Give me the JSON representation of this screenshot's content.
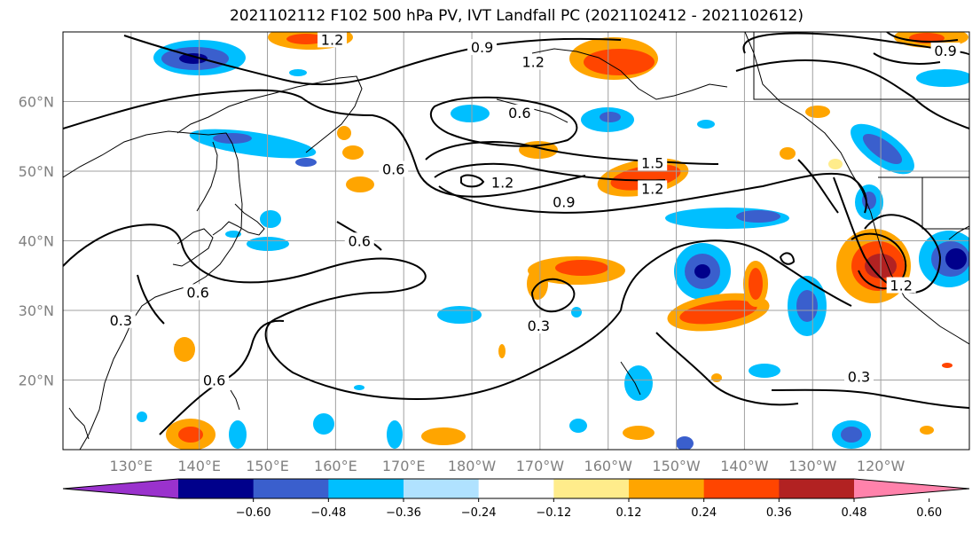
{
  "title": "2021102112 F102 500 hPa PV, IVT Landfall PC (2021102412 - 2021102612)",
  "map": {
    "lon_range": [
      120,
      253
    ],
    "lat_range": [
      10,
      70
    ],
    "lat_ticks": [
      {
        "lat": 20,
        "label": "20°N"
      },
      {
        "lat": 30,
        "label": "30°N"
      },
      {
        "lat": 40,
        "label": "40°N"
      },
      {
        "lat": 50,
        "label": "50°N"
      },
      {
        "lat": 60,
        "label": "60°N"
      }
    ],
    "lon_ticks": [
      {
        "lon": 130,
        "label": "130°E"
      },
      {
        "lon": 140,
        "label": "140°E"
      },
      {
        "lon": 150,
        "label": "150°E"
      },
      {
        "lon": 160,
        "label": "160°E"
      },
      {
        "lon": 170,
        "label": "170°E"
      },
      {
        "lon": 180,
        "label": "180°W"
      },
      {
        "lon": 190,
        "label": "170°W"
      },
      {
        "lon": 200,
        "label": "160°W"
      },
      {
        "lon": 210,
        "label": "150°W"
      },
      {
        "lon": 220,
        "label": "140°W"
      },
      {
        "lon": 230,
        "label": "130°W"
      },
      {
        "lon": 240,
        "label": "120°W"
      }
    ],
    "gridlines": true,
    "contour_labels": [
      {
        "lon": 159.5,
        "lat": 68.8,
        "text": "1.2"
      },
      {
        "lon": 181.5,
        "lat": 67.7,
        "text": "0.9"
      },
      {
        "lon": 189,
        "lat": 65.6,
        "text": "1.2"
      },
      {
        "lon": 187,
        "lat": 58.3,
        "text": "0.6"
      },
      {
        "lon": 168.5,
        "lat": 50.2,
        "text": "0.6"
      },
      {
        "lon": 184.5,
        "lat": 48.3,
        "text": "1.2"
      },
      {
        "lon": 206.5,
        "lat": 51.1,
        "text": "1.5"
      },
      {
        "lon": 206.5,
        "lat": 47.4,
        "text": "1.2"
      },
      {
        "lon": 193.5,
        "lat": 45.5,
        "text": "0.9"
      },
      {
        "lon": 163.5,
        "lat": 39.9,
        "text": "0.6"
      },
      {
        "lon": 139.8,
        "lat": 32.5,
        "text": "0.6"
      },
      {
        "lon": 128.5,
        "lat": 28.5,
        "text": "0.3"
      },
      {
        "lon": 189.8,
        "lat": 27.7,
        "text": "0.3"
      },
      {
        "lon": 142.2,
        "lat": 19.9,
        "text": "0.6"
      },
      {
        "lon": 236.8,
        "lat": 20.4,
        "text": "0.3"
      },
      {
        "lon": 249.5,
        "lat": 67.2,
        "text": "0.9"
      },
      {
        "lon": 243,
        "lat": 33.5,
        "text": "1.2"
      }
    ]
  },
  "colorbar": {
    "boundaries": [
      -0.72,
      -0.6,
      -0.48,
      -0.36,
      -0.24,
      -0.12,
      0.12,
      0.24,
      0.36,
      0.48,
      0.6,
      0.72
    ],
    "colors": [
      "#9a32cd",
      "#00008b",
      "#3a5fcd",
      "#00bfff",
      "#b0e2ff",
      "#ffffff",
      "#ffec8b",
      "#ffa500",
      "#ff4500",
      "#b22222",
      "#ff82ab"
    ],
    "tick_labels": [
      "−0.60",
      "−0.48",
      "−0.36",
      "−0.24",
      "−0.12",
      "0.12",
      "0.24",
      "0.36",
      "0.48",
      "0.60"
    ]
  }
}
